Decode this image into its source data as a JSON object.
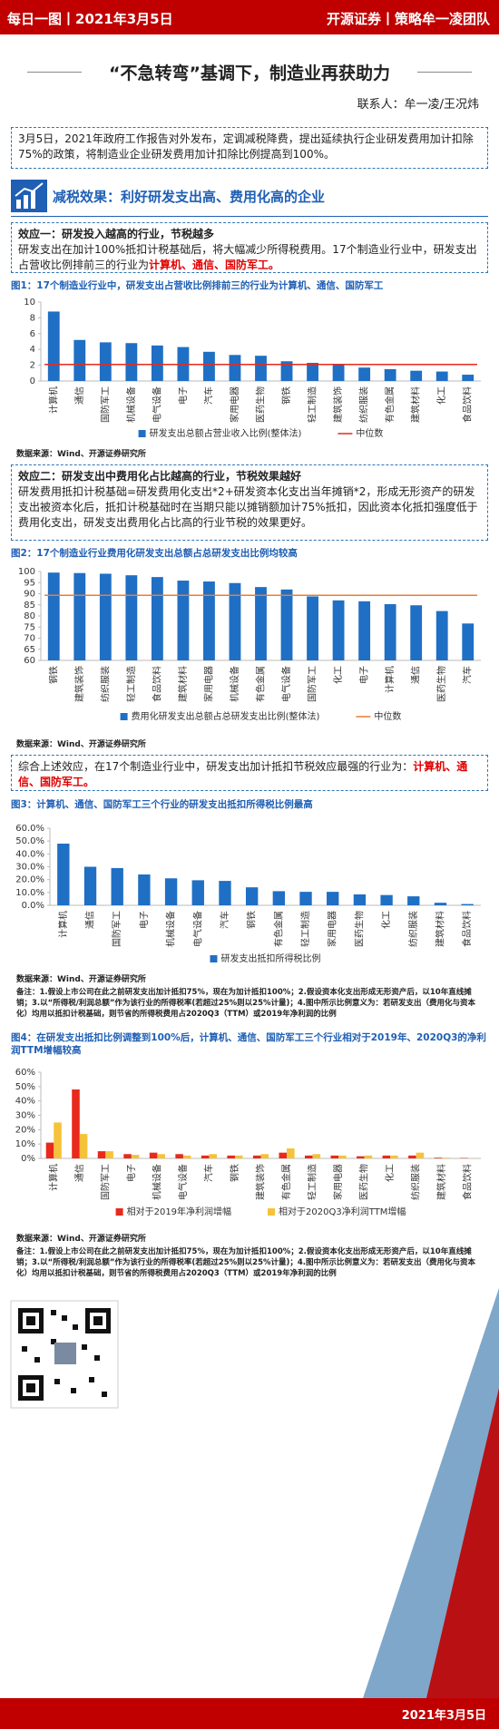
{
  "header": {
    "left": "每日一图丨2021年3月5日",
    "right": "开源证券丨策略牟一凌团队"
  },
  "title": "“不急转弯”基调下，制造业再获助力",
  "contact": "联系人：牟一凌/王况炜",
  "intro": "3月5日，2021年政府工作报告对外发布，定调减税降费，提出延续执行企业研发费用加计扣除75%的政策，将制造业企业研发费用加计扣除比例提高到100%。",
  "section_title": "减税效果：利好研发支出高、费用化高的企业",
  "effect1": {
    "title": "效应一：研发投入越高的行业，节税越多",
    "text": "研发支出在加计100%抵扣计税基础后，将大幅减少所得税费用。17个制造业行业中，研发支出占营收比例排前三的行业为",
    "highlight": "计算机、通信、国防军工。"
  },
  "effect2": {
    "title": "效应二：研发支出中费用化占比越高的行业，节税效果越好",
    "text": "研发费用抵扣计税基础=研发费用化支出*2+研发资本化支出当年摊销*2，形成无形资产的研发支出被资本化后，抵扣计税基础时在当期只能以摊销额加计75%抵扣，因此资本化抵扣强度低于费用化支出，研发支出费用化占比高的行业节税的效果更好。"
  },
  "summary": {
    "text": "综合上述效应，在17个制造业行业中，研发支出加计抵扣节税效应最强的行业为：",
    "highlight": "计算机、通信、国防军工。"
  },
  "footer_date": "2021年3月5日",
  "chart_data": [
    {
      "type": "bar",
      "title": "图1：17个制造业行业中，研发支出占营收比例排前三的行业为计算机、通信、国防军工",
      "source": "数据来源：Wind、开源证券研究所",
      "categories": [
        "计算机",
        "通信",
        "国防军工",
        "机械设备",
        "电气设备",
        "电子",
        "汽车",
        "家用电器",
        "医药生物",
        "钢铁",
        "轻工制造",
        "建筑装饰",
        "纺织服装",
        "有色金属",
        "建筑材料",
        "化工",
        "食品饮料"
      ],
      "series": [
        {
          "name": "研发支出总额占营业收入比例(整体法)",
          "color": "#1f6fc5",
          "values": [
            8.8,
            5.2,
            4.9,
            4.8,
            4.5,
            4.3,
            3.7,
            3.3,
            3.2,
            2.5,
            2.3,
            2.1,
            1.7,
            1.5,
            1.3,
            1.2,
            0.8
          ]
        }
      ],
      "reference_line": {
        "name": "中位数",
        "color": "#e8291c",
        "value": 2.1
      },
      "ylim": [
        0,
        10
      ],
      "yticks": [
        0,
        2,
        4,
        6,
        8,
        10
      ]
    },
    {
      "type": "bar",
      "title": "图2：17个制造业行业费用化研发支出总额占总研发支出比例均较高",
      "source": "数据来源：Wind、开源证券研究所",
      "categories": [
        "钢铁",
        "建筑装饰",
        "纺织服装",
        "轻工制造",
        "食品饮料",
        "建筑材料",
        "家用电器",
        "机械设备",
        "有色金属",
        "电气设备",
        "国防军工",
        "化工",
        "电子",
        "计算机",
        "通信",
        "医药生物",
        "汽车"
      ],
      "series": [
        {
          "name": "费用化研发支出总额占总研发支出比例(整体法)",
          "color": "#1f6fc5",
          "values": [
            99.5,
            99.3,
            99.0,
            98.3,
            97.5,
            95.9,
            95.5,
            94.8,
            93.0,
            91.9,
            88.8,
            87.0,
            86.6,
            85.3,
            84.8,
            82.2,
            76.6
          ]
        }
      ],
      "reference_line": {
        "name": "中位数",
        "color": "#ed7d31",
        "value": 89.3
      },
      "ylim": [
        60,
        100
      ],
      "yticks": [
        60,
        65,
        70,
        75,
        80,
        85,
        90,
        95,
        100
      ]
    },
    {
      "type": "bar",
      "title": "图3：计算机、通信、国防军工三个行业的研发支出抵扣所得税比例最高",
      "source": "数据来源：Wind、开源证券研究所",
      "note": "备注：1.假设上市公司在此之前研发支出加计抵扣75%，现在为加计抵扣100%；2.假设资本化支出形成无形资产后，以10年直线摊销；3.以“所得税/利润总额”作为该行业的所得税率(若超过25%则以25%计量)；4.图中所示比例意义为：若研发支出（费用化与资本化）均用以抵扣计税基础，则节省的所得税费用占2020Q3（TTM）或2019年净利润的比例",
      "categories": [
        "计算机",
        "通信",
        "国防军工",
        "电子",
        "机械设备",
        "电气设备",
        "汽车",
        "钢铁",
        "有色金属",
        "轻工制造",
        "家用电器",
        "医药生物",
        "化工",
        "纺织服装",
        "建筑材料",
        "食品饮料"
      ],
      "series": [
        {
          "name": "研发支出抵扣所得税比例",
          "color": "#1f6fc5",
          "values": [
            48,
            30,
            29,
            24,
            21,
            19.5,
            19,
            14,
            11,
            10.5,
            10.5,
            8.5,
            8,
            7,
            2,
            1
          ]
        }
      ],
      "ylim": [
        0,
        60
      ],
      "yticks": [
        {
          "value": 0,
          "label": "0.0%"
        },
        {
          "value": 10,
          "label": "10.0%"
        },
        {
          "value": 20,
          "label": "20.0%"
        },
        {
          "value": 30,
          "label": "30.0%"
        },
        {
          "value": 40,
          "label": "40.0%"
        },
        {
          "value": 50,
          "label": "50.0%"
        },
        {
          "value": 60,
          "label": "60.0%"
        }
      ]
    },
    {
      "type": "bar",
      "title": "图4：在研发支出抵扣比例调整到100%后，计算机、通信、国防军工三个行业相对于2019年、2020Q3的净利润TTM增幅较高",
      "source": "数据来源：Wind、开源证券研究所",
      "note": "备注：1.假设上市公司在此之前研发支出加计抵扣75%，现在为加计抵扣100%；2.假设资本化支出形成无形资产后，以10年直线摊销；3.以“所得税/利润总额”作为该行业的所得税率(若超过25%则以25%计量)；4.图中所示比例意义为：若研发支出（费用化与资本化）均用以抵扣计税基础，则节省的所得税费用占2020Q3（TTM）或2019年净利润的比例",
      "categories": [
        "计算机",
        "通信",
        "国防军工",
        "电子",
        "机械设备",
        "电气设备",
        "汽车",
        "钢铁",
        "建筑装饰",
        "有色金属",
        "轻工制造",
        "家用电器",
        "医药生物",
        "化工",
        "纺织服装",
        "建筑材料",
        "食品饮料"
      ],
      "series": [
        {
          "name": "相对于2019年净利润增幅",
          "color": "#e8291c",
          "values": [
            11,
            48,
            5,
            3,
            4,
            3,
            2,
            2,
            2,
            4,
            2,
            2,
            1.5,
            2,
            2,
            0.5,
            0.3
          ]
        },
        {
          "name": "相对于2020Q3净利润TTM增幅",
          "color": "#f5c23a",
          "values": [
            25,
            17,
            5,
            2.5,
            3,
            2,
            3,
            2,
            3,
            7,
            3,
            2,
            2,
            2,
            4,
            0.5,
            0.2
          ]
        }
      ],
      "ylim": [
        0,
        60
      ],
      "yticks": [
        {
          "value": 0,
          "label": "0%"
        },
        {
          "value": 10,
          "label": "10%"
        },
        {
          "value": 20,
          "label": "20%"
        },
        {
          "value": 30,
          "label": "30%"
        },
        {
          "value": 40,
          "label": "40%"
        },
        {
          "value": 50,
          "label": "50%"
        },
        {
          "value": 60,
          "label": "60%"
        }
      ]
    }
  ]
}
